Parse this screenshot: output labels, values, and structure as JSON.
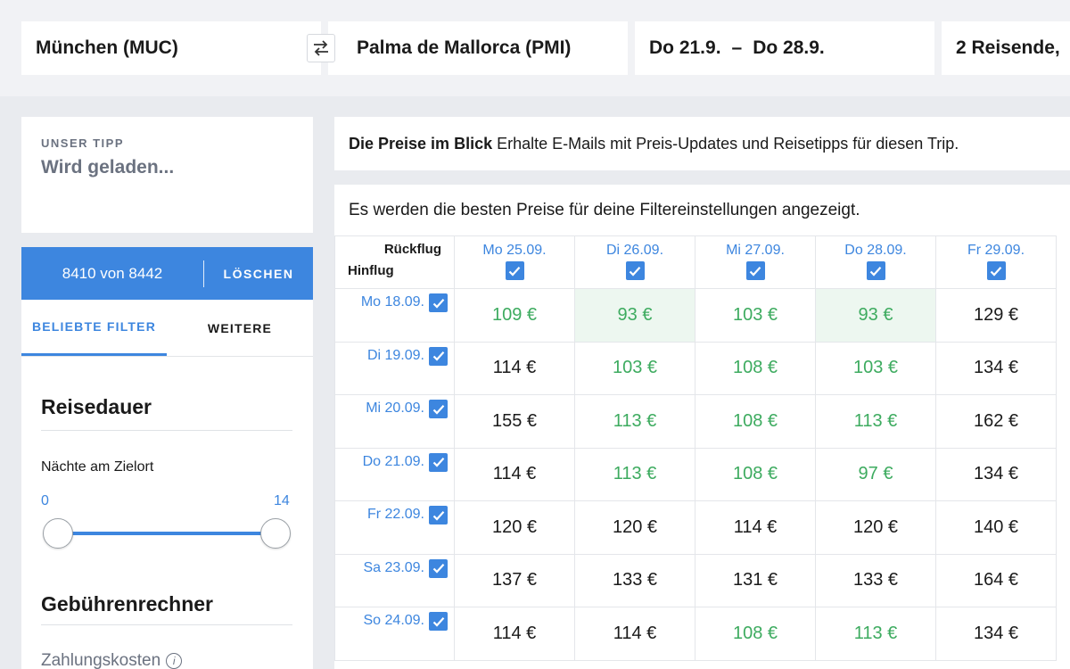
{
  "search": {
    "origin": "München (MUC)",
    "destination": "Palma de Mallorca (PMI)",
    "depart": "Do 21.9.",
    "return": "Do 28.9.",
    "dash": "–",
    "travelers": "2 Reisende,"
  },
  "tip": {
    "label": "UNSER TIPP",
    "value": "Wird geladen..."
  },
  "filter": {
    "count": "8410 von 8442",
    "clear": "LÖSCHEN",
    "tabs": [
      "BELIEBTE FILTER",
      "WEITERE"
    ],
    "duration_title": "Reisedauer",
    "nights_label": "Nächte am Zielort",
    "range_min": "0",
    "range_max": "14",
    "fees_title": "Gebührenrechner",
    "payment_label": "Zahlungskosten",
    "info_glyph": "i"
  },
  "alert": {
    "title": "Die Preise im Blick",
    "text": "Erhalte E-Mails mit Preis-Updates und Reisetipps für diesen Trip."
  },
  "matrix": {
    "hint": "Es werden die besten Preise für deine Filtereinstellungen angezeigt.",
    "return_label": "Rückflug",
    "outbound_label": "Hinflug",
    "columns": [
      "Mo 25.09.",
      "Di 26.09.",
      "Mi 27.09.",
      "Do 28.09.",
      "Fr 29.09."
    ],
    "rows": [
      {
        "date": "Mo 18.09.",
        "prices": [
          "109 €",
          "93 €",
          "103 €",
          "93 €",
          "129 €"
        ],
        "status": [
          "green",
          "best",
          "green",
          "best",
          "dark"
        ]
      },
      {
        "date": "Di 19.09.",
        "prices": [
          "114 €",
          "103 €",
          "108 €",
          "103 €",
          "134 €"
        ],
        "status": [
          "dark",
          "green",
          "green",
          "green",
          "dark"
        ]
      },
      {
        "date": "Mi 20.09.",
        "prices": [
          "155 €",
          "113 €",
          "108 €",
          "113 €",
          "162 €"
        ],
        "status": [
          "dark",
          "green",
          "green",
          "green",
          "dark"
        ]
      },
      {
        "date": "Do 21.09.",
        "prices": [
          "114 €",
          "113 €",
          "108 €",
          "97 €",
          "134 €"
        ],
        "status": [
          "dark",
          "green",
          "green",
          "green",
          "dark"
        ]
      },
      {
        "date": "Fr 22.09.",
        "prices": [
          "120 €",
          "120 €",
          "114 €",
          "120 €",
          "140 €"
        ],
        "status": [
          "dark",
          "dark",
          "dark",
          "dark",
          "dark"
        ]
      },
      {
        "date": "Sa 23.09.",
        "prices": [
          "137 €",
          "133 €",
          "131 €",
          "133 €",
          "164 €"
        ],
        "status": [
          "dark",
          "dark",
          "dark",
          "dark",
          "dark"
        ]
      },
      {
        "date": "So 24.09.",
        "prices": [
          "114 €",
          "114 €",
          "108 €",
          "113 €",
          "134 €"
        ],
        "status": [
          "dark",
          "dark",
          "green",
          "green",
          "dark"
        ]
      }
    ]
  },
  "colors": {
    "accent": "#3d86df",
    "price_good": "#3dab5f",
    "price_best_bg": "#edf7f0"
  },
  "icons": {
    "swap": "swap-arrows-icon",
    "check": "checkmark-icon",
    "info": "info-icon"
  }
}
